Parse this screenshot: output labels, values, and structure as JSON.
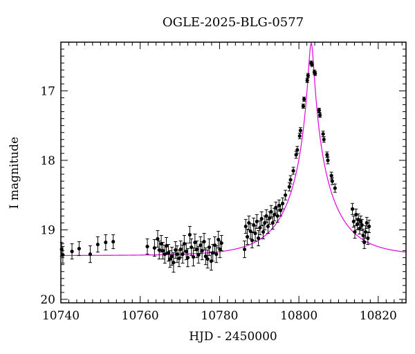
{
  "chart_data": {
    "type": "scatter",
    "title": "OGLE-2025-BLG-0577",
    "xlabel": "HJD - 2450000",
    "ylabel": "I magnitude",
    "xlim": [
      10740,
      10827
    ],
    "ylim": [
      20.05,
      16.3
    ],
    "y_inverted": true,
    "x_ticks": [
      10740,
      10760,
      10780,
      10800,
      10820
    ],
    "y_ticks": [
      17,
      18,
      19,
      20
    ],
    "grid": false,
    "legend": "none",
    "colors": {
      "points": "#000000",
      "model": "#e000e0"
    },
    "model": {
      "t0": 10803.1,
      "u0": 0.06,
      "tE": 11,
      "mag_base": 19.37
    },
    "series": [
      {
        "type": "scatter_errorbars",
        "points": [
          {
            "x": 10740.2,
            "y": 19.28,
            "e": 0.1
          },
          {
            "x": 10740.5,
            "y": 19.36,
            "e": 0.12
          },
          {
            "x": 10742.8,
            "y": 19.31,
            "e": 0.11
          },
          {
            "x": 10744.6,
            "y": 19.27,
            "e": 0.1
          },
          {
            "x": 10747.4,
            "y": 19.35,
            "e": 0.12
          },
          {
            "x": 10749.3,
            "y": 19.21,
            "e": 0.11
          },
          {
            "x": 10751.3,
            "y": 19.18,
            "e": 0.11
          },
          {
            "x": 10753.2,
            "y": 19.17,
            "e": 0.1
          },
          {
            "x": 10761.8,
            "y": 19.24,
            "e": 0.11
          },
          {
            "x": 10763.6,
            "y": 19.26,
            "e": 0.12
          },
          {
            "x": 10764.4,
            "y": 19.13,
            "e": 0.12
          },
          {
            "x": 10764.8,
            "y": 19.29,
            "e": 0.13
          },
          {
            "x": 10765.3,
            "y": 19.2,
            "e": 0.12
          },
          {
            "x": 10765.7,
            "y": 19.3,
            "e": 0.12
          },
          {
            "x": 10766.2,
            "y": 19.35,
            "e": 0.13
          },
          {
            "x": 10766.6,
            "y": 19.23,
            "e": 0.12
          },
          {
            "x": 10767.1,
            "y": 19.33,
            "e": 0.12
          },
          {
            "x": 10767.5,
            "y": 19.42,
            "e": 0.12
          },
          {
            "x": 10768.0,
            "y": 19.38,
            "e": 0.13
          },
          {
            "x": 10768.4,
            "y": 19.47,
            "e": 0.14
          },
          {
            "x": 10768.9,
            "y": 19.29,
            "e": 0.12
          },
          {
            "x": 10769.3,
            "y": 19.35,
            "e": 0.12
          },
          {
            "x": 10769.8,
            "y": 19.41,
            "e": 0.12
          },
          {
            "x": 10770.2,
            "y": 19.28,
            "e": 0.12
          },
          {
            "x": 10770.7,
            "y": 19.35,
            "e": 0.13
          },
          {
            "x": 10771.1,
            "y": 19.2,
            "e": 0.12
          },
          {
            "x": 10771.6,
            "y": 19.31,
            "e": 0.12
          },
          {
            "x": 10772.0,
            "y": 19.4,
            "e": 0.13
          },
          {
            "x": 10772.5,
            "y": 19.07,
            "e": 0.12
          },
          {
            "x": 10772.9,
            "y": 19.25,
            "e": 0.12
          },
          {
            "x": 10773.4,
            "y": 19.39,
            "e": 0.13
          },
          {
            "x": 10773.8,
            "y": 19.18,
            "e": 0.12
          },
          {
            "x": 10774.3,
            "y": 19.28,
            "e": 0.12
          },
          {
            "x": 10774.7,
            "y": 19.36,
            "e": 0.12
          },
          {
            "x": 10775.2,
            "y": 19.22,
            "e": 0.12
          },
          {
            "x": 10775.6,
            "y": 19.3,
            "e": 0.13
          },
          {
            "x": 10776.1,
            "y": 19.17,
            "e": 0.12
          },
          {
            "x": 10776.5,
            "y": 19.38,
            "e": 0.12
          },
          {
            "x": 10777.0,
            "y": 19.42,
            "e": 0.13
          },
          {
            "x": 10777.4,
            "y": 19.25,
            "e": 0.12
          },
          {
            "x": 10777.9,
            "y": 19.45,
            "e": 0.13
          },
          {
            "x": 10778.3,
            "y": 19.33,
            "e": 0.12
          },
          {
            "x": 10778.8,
            "y": 19.22,
            "e": 0.12
          },
          {
            "x": 10779.2,
            "y": 19.35,
            "e": 0.12
          },
          {
            "x": 10779.7,
            "y": 19.14,
            "e": 0.12
          },
          {
            "x": 10780.1,
            "y": 19.28,
            "e": 0.12
          },
          {
            "x": 10780.5,
            "y": 19.19,
            "e": 0.11
          },
          {
            "x": 10786.3,
            "y": 19.28,
            "e": 0.12
          },
          {
            "x": 10786.6,
            "y": 18.95,
            "e": 0.1
          },
          {
            "x": 10787.0,
            "y": 19.1,
            "e": 0.11
          },
          {
            "x": 10787.4,
            "y": 18.9,
            "e": 0.1
          },
          {
            "x": 10787.8,
            "y": 19.02,
            "e": 0.11
          },
          {
            "x": 10788.2,
            "y": 19.15,
            "e": 0.11
          },
          {
            "x": 10788.6,
            "y": 18.93,
            "e": 0.1
          },
          {
            "x": 10789.0,
            "y": 19.05,
            "e": 0.11
          },
          {
            "x": 10789.4,
            "y": 18.88,
            "e": 0.1
          },
          {
            "x": 10789.8,
            "y": 19.12,
            "e": 0.11
          },
          {
            "x": 10790.2,
            "y": 18.97,
            "e": 0.1
          },
          {
            "x": 10790.6,
            "y": 18.84,
            "e": 0.1
          },
          {
            "x": 10791.0,
            "y": 19.03,
            "e": 0.1
          },
          {
            "x": 10791.4,
            "y": 18.9,
            "e": 0.1
          },
          {
            "x": 10791.8,
            "y": 18.8,
            "e": 0.09
          },
          {
            "x": 10792.2,
            "y": 18.95,
            "e": 0.1
          },
          {
            "x": 10792.6,
            "y": 18.83,
            "e": 0.09
          },
          {
            "x": 10793.0,
            "y": 18.74,
            "e": 0.09
          },
          {
            "x": 10793.4,
            "y": 18.9,
            "e": 0.09
          },
          {
            "x": 10793.8,
            "y": 18.78,
            "e": 0.09
          },
          {
            "x": 10794.2,
            "y": 18.68,
            "e": 0.08
          },
          {
            "x": 10794.6,
            "y": 18.8,
            "e": 0.09
          },
          {
            "x": 10795.0,
            "y": 18.65,
            "e": 0.08
          },
          {
            "x": 10795.4,
            "y": 18.72,
            "e": 0.08
          },
          {
            "x": 10795.9,
            "y": 18.62,
            "e": 0.08
          },
          {
            "x": 10796.6,
            "y": 18.5,
            "e": 0.07
          },
          {
            "x": 10797.6,
            "y": 18.38,
            "e": 0.06
          },
          {
            "x": 10797.9,
            "y": 18.28,
            "e": 0.06
          },
          {
            "x": 10798.6,
            "y": 18.15,
            "e": 0.05
          },
          {
            "x": 10799.3,
            "y": 17.92,
            "e": 0.05
          },
          {
            "x": 10799.6,
            "y": 17.85,
            "e": 0.05
          },
          {
            "x": 10800.2,
            "y": 17.65,
            "e": 0.04
          },
          {
            "x": 10800.4,
            "y": 17.57,
            "e": 0.04
          },
          {
            "x": 10801.1,
            "y": 17.22,
            "e": 0.03
          },
          {
            "x": 10801.3,
            "y": 17.12,
            "e": 0.03
          },
          {
            "x": 10802.1,
            "y": 16.85,
            "e": 0.03
          },
          {
            "x": 10802.3,
            "y": 16.78,
            "e": 0.03
          },
          {
            "x": 10803.1,
            "y": 16.6,
            "e": 0.03
          },
          {
            "x": 10803.3,
            "y": 16.62,
            "e": 0.03
          },
          {
            "x": 10803.9,
            "y": 16.73,
            "e": 0.03
          },
          {
            "x": 10804.1,
            "y": 16.75,
            "e": 0.03
          },
          {
            "x": 10805.1,
            "y": 17.28,
            "e": 0.03
          },
          {
            "x": 10805.3,
            "y": 17.35,
            "e": 0.03
          },
          {
            "x": 10806.1,
            "y": 17.62,
            "e": 0.04
          },
          {
            "x": 10806.3,
            "y": 17.7,
            "e": 0.04
          },
          {
            "x": 10807.1,
            "y": 17.92,
            "e": 0.04
          },
          {
            "x": 10807.3,
            "y": 18.0,
            "e": 0.05
          },
          {
            "x": 10808.2,
            "y": 18.22,
            "e": 0.05
          },
          {
            "x": 10808.4,
            "y": 18.3,
            "e": 0.05
          },
          {
            "x": 10809.1,
            "y": 18.4,
            "e": 0.06
          },
          {
            "x": 10813.5,
            "y": 18.7,
            "e": 0.08
          },
          {
            "x": 10813.8,
            "y": 18.88,
            "e": 0.08
          },
          {
            "x": 10814.1,
            "y": 19.03,
            "e": 0.09
          },
          {
            "x": 10814.4,
            "y": 18.78,
            "e": 0.08
          },
          {
            "x": 10814.7,
            "y": 18.92,
            "e": 0.08
          },
          {
            "x": 10815.0,
            "y": 18.85,
            "e": 0.08
          },
          {
            "x": 10815.3,
            "y": 18.98,
            "e": 0.08
          },
          {
            "x": 10815.6,
            "y": 18.88,
            "e": 0.08
          },
          {
            "x": 10815.9,
            "y": 18.93,
            "e": 0.08
          },
          {
            "x": 10816.2,
            "y": 19.08,
            "e": 0.09
          },
          {
            "x": 10816.5,
            "y": 19.18,
            "e": 0.09
          },
          {
            "x": 10816.8,
            "y": 19.03,
            "e": 0.09
          },
          {
            "x": 10817.1,
            "y": 18.9,
            "e": 0.08
          },
          {
            "x": 10817.4,
            "y": 19.12,
            "e": 0.09
          },
          {
            "x": 10817.7,
            "y": 18.95,
            "e": 0.09
          }
        ]
      }
    ]
  }
}
